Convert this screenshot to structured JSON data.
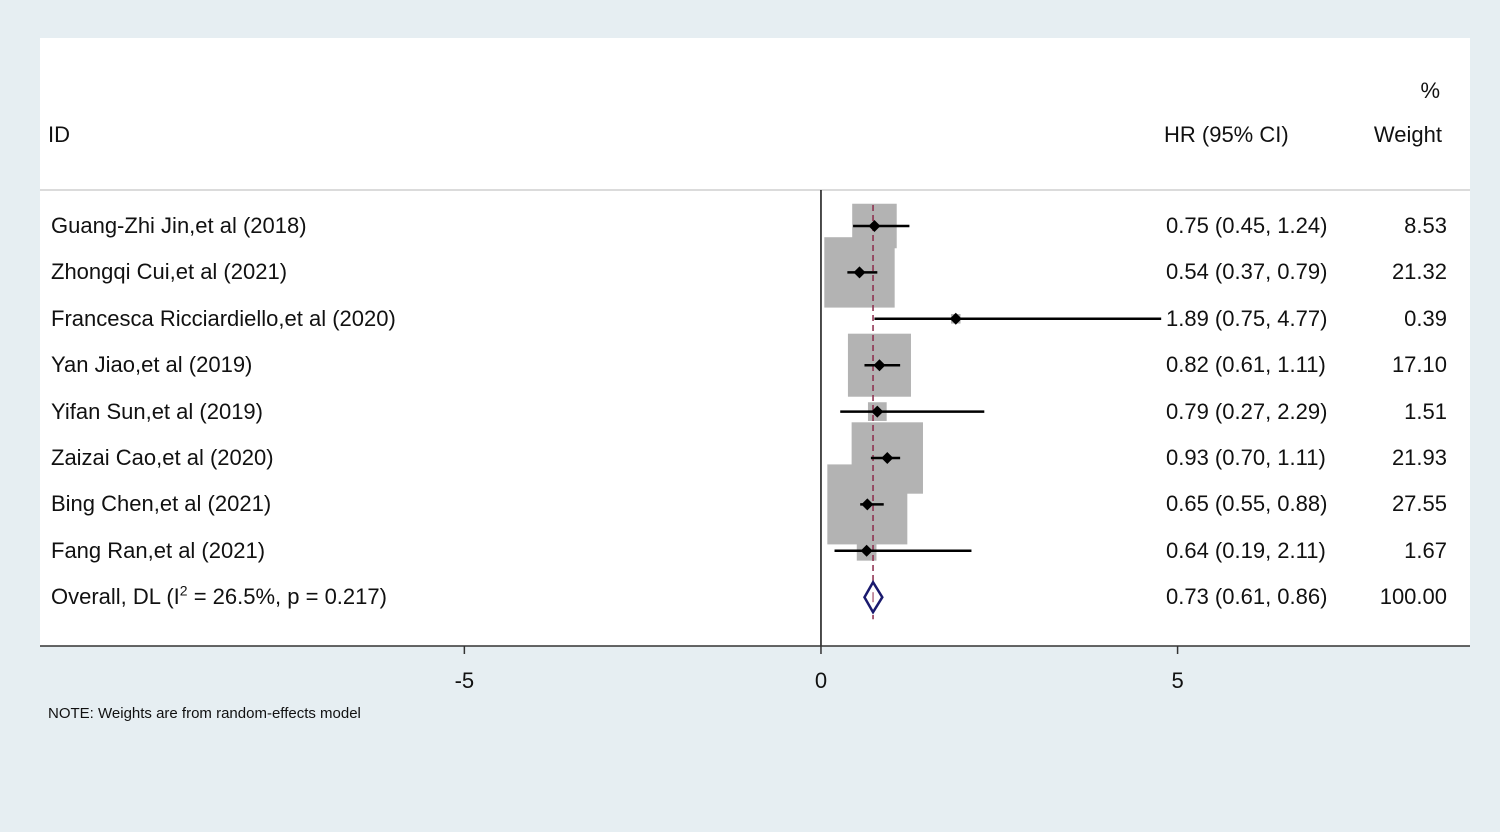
{
  "header": {
    "id_label": "ID",
    "effect_label": "HR (95% CI)",
    "weight_pct": "%",
    "weight_label": "Weight"
  },
  "chart_data": {
    "type": "forest",
    "measure": "HR",
    "null_line": 0,
    "overall_line": 0.73,
    "xlim": [
      -10.95,
      9.1
    ],
    "xticks": [
      -5,
      0,
      5
    ],
    "xtick_labels": [
      "-5",
      "0",
      "5"
    ],
    "studies": [
      {
        "id": "Guang-Zhi Jin,et al (2018)",
        "est": 0.75,
        "lo": 0.45,
        "hi": 1.24,
        "ci_text": "0.75 (0.45, 1.24)",
        "weight": 8.53,
        "weight_text": "8.53"
      },
      {
        "id": "Zhongqi Cui,et al (2021)",
        "est": 0.54,
        "lo": 0.37,
        "hi": 0.79,
        "ci_text": "0.54 (0.37, 0.79)",
        "weight": 21.32,
        "weight_text": "21.32"
      },
      {
        "id": "Francesca Ricciardiello,et al (2020)",
        "est": 1.89,
        "lo": 0.75,
        "hi": 4.77,
        "ci_text": "1.89 (0.75, 4.77)",
        "weight": 0.39,
        "weight_text": "0.39"
      },
      {
        "id": "Yan Jiao,et al (2019)",
        "est": 0.82,
        "lo": 0.61,
        "hi": 1.11,
        "ci_text": "0.82 (0.61, 1.11)",
        "weight": 17.1,
        "weight_text": "17.10"
      },
      {
        "id": "Yifan Sun,et al (2019)",
        "est": 0.79,
        "lo": 0.27,
        "hi": 2.29,
        "ci_text": "0.79 (0.27, 2.29)",
        "weight": 1.51,
        "weight_text": "1.51"
      },
      {
        "id": "Zaizai Cao,et al (2020)",
        "est": 0.93,
        "lo": 0.7,
        "hi": 1.11,
        "ci_text": "0.93 (0.70, 1.11)",
        "weight": 21.93,
        "weight_text": "21.93"
      },
      {
        "id": "Bing Chen,et al (2021)",
        "est": 0.65,
        "lo": 0.55,
        "hi": 0.88,
        "ci_text": "0.65 (0.55, 0.88)",
        "weight": 27.55,
        "weight_text": "27.55"
      },
      {
        "id": "Fang Ran,et al (2021)",
        "est": 0.64,
        "lo": 0.19,
        "hi": 2.11,
        "ci_text": "0.64 (0.19, 2.11)",
        "weight": 1.67,
        "weight_text": "1.67"
      }
    ],
    "overall": {
      "label_pre": "Overall, DL (I",
      "label_sup": "2",
      "label_post": " = 26.5%, p = 0.217)",
      "est": 0.73,
      "lo": 0.61,
      "hi": 0.86,
      "ci_text": "0.73 (0.61, 0.86)",
      "weight_text": "100.00"
    },
    "colors": {
      "box": "#b3b3b3",
      "point": "#000000",
      "ci": "#000000",
      "diamond": "#1a1a6e",
      "overall_line": "#8b2a4a",
      "axis": "#333333"
    }
  },
  "note": "NOTE: Weights are from random-effects model"
}
